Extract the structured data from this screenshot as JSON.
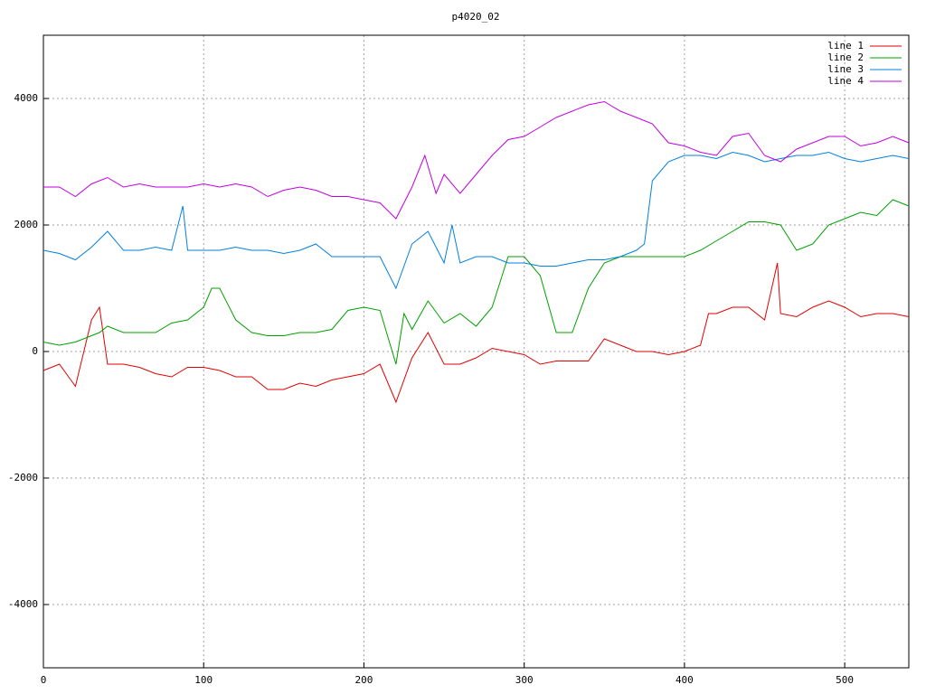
{
  "chart_data": {
    "type": "line",
    "title": "p4020_02",
    "xlim": [
      0,
      540
    ],
    "ylim": [
      -5000,
      5000
    ],
    "xticks": [
      0,
      100,
      200,
      300,
      400,
      500
    ],
    "yticks": [
      -4000,
      -2000,
      0,
      2000,
      4000
    ],
    "grid": true,
    "legend": "top-right",
    "series": [
      {
        "name": "line 1",
        "color": "#e00000",
        "x": [
          0,
          10,
          20,
          30,
          35,
          40,
          50,
          60,
          70,
          80,
          90,
          100,
          110,
          120,
          130,
          140,
          150,
          160,
          170,
          180,
          190,
          200,
          210,
          220,
          230,
          240,
          250,
          260,
          270,
          280,
          290,
          300,
          310,
          320,
          330,
          340,
          350,
          360,
          370,
          380,
          390,
          400,
          410,
          415,
          420,
          430,
          440,
          450,
          458,
          460,
          470,
          480,
          490,
          500,
          510,
          520,
          530,
          540
        ],
        "values": [
          -300,
          -200,
          -550,
          500,
          700,
          -200,
          -200,
          -250,
          -350,
          -400,
          -250,
          -250,
          -300,
          -400,
          -400,
          -600,
          -600,
          -500,
          -550,
          -450,
          -400,
          -350,
          -200,
          -800,
          -100,
          300,
          -200,
          -200,
          -100,
          50,
          0,
          -50,
          -200,
          -150,
          -150,
          -150,
          200,
          100,
          0,
          0,
          -50,
          0,
          100,
          600,
          600,
          700,
          700,
          500,
          1400,
          600,
          550,
          700,
          800,
          700,
          550,
          600,
          600,
          550
        ]
      },
      {
        "name": "line 2",
        "color": "#00a000",
        "x": [
          0,
          10,
          20,
          30,
          35,
          40,
          50,
          60,
          70,
          80,
          90,
          100,
          105,
          110,
          120,
          130,
          140,
          150,
          160,
          170,
          180,
          190,
          200,
          210,
          220,
          225,
          230,
          240,
          250,
          260,
          270,
          280,
          290,
          300,
          310,
          320,
          330,
          340,
          350,
          360,
          370,
          380,
          390,
          400,
          410,
          420,
          430,
          440,
          450,
          460,
          470,
          480,
          490,
          500,
          510,
          520,
          530,
          540
        ],
        "values": [
          150,
          100,
          150,
          250,
          300,
          400,
          300,
          300,
          300,
          450,
          500,
          700,
          1000,
          1000,
          500,
          300,
          250,
          250,
          300,
          300,
          350,
          650,
          700,
          650,
          -200,
          600,
          350,
          800,
          450,
          600,
          400,
          700,
          1500,
          1500,
          1200,
          300,
          300,
          1000,
          1400,
          1500,
          1500,
          1500,
          1500,
          1500,
          1600,
          1750,
          1900,
          2050,
          2050,
          2000,
          1600,
          1700,
          2000,
          2100,
          2200,
          2150,
          2400,
          2300
        ]
      },
      {
        "name": "line 3",
        "color": "#0080e0",
        "x": [
          0,
          10,
          20,
          30,
          40,
          50,
          60,
          70,
          80,
          87,
          90,
          100,
          110,
          120,
          130,
          140,
          150,
          160,
          170,
          180,
          190,
          200,
          210,
          220,
          230,
          240,
          250,
          255,
          260,
          270,
          280,
          290,
          300,
          310,
          320,
          330,
          340,
          350,
          360,
          370,
          375,
          380,
          390,
          400,
          410,
          420,
          430,
          440,
          450,
          460,
          470,
          480,
          490,
          500,
          510,
          520,
          530,
          540
        ],
        "values": [
          1600,
          1550,
          1450,
          1650,
          1900,
          1600,
          1600,
          1650,
          1600,
          2300,
          1600,
          1600,
          1600,
          1650,
          1600,
          1600,
          1550,
          1600,
          1700,
          1500,
          1500,
          1500,
          1500,
          1000,
          1700,
          1900,
          1400,
          2000,
          1400,
          1500,
          1500,
          1400,
          1400,
          1350,
          1350,
          1400,
          1450,
          1450,
          1500,
          1600,
          1700,
          2700,
          3000,
          3100,
          3100,
          3050,
          3150,
          3100,
          3000,
          3050,
          3100,
          3100,
          3150,
          3050,
          3000,
          3050,
          3100,
          3050
        ]
      },
      {
        "name": "line 4",
        "color": "#c000e0",
        "x": [
          0,
          10,
          20,
          30,
          40,
          50,
          60,
          70,
          80,
          90,
          100,
          110,
          120,
          130,
          140,
          150,
          160,
          170,
          180,
          190,
          200,
          210,
          220,
          230,
          238,
          245,
          250,
          260,
          270,
          280,
          290,
          300,
          310,
          320,
          330,
          340,
          350,
          360,
          370,
          380,
          390,
          400,
          410,
          420,
          430,
          440,
          450,
          460,
          470,
          480,
          490,
          500,
          510,
          520,
          530,
          540
        ],
        "values": [
          2600,
          2600,
          2450,
          2650,
          2750,
          2600,
          2650,
          2600,
          2600,
          2600,
          2650,
          2600,
          2650,
          2600,
          2450,
          2550,
          2600,
          2550,
          2450,
          2450,
          2400,
          2350,
          2100,
          2600,
          3100,
          2500,
          2800,
          2500,
          2800,
          3100,
          3350,
          3400,
          3550,
          3700,
          3800,
          3900,
          3950,
          3800,
          3700,
          3600,
          3300,
          3250,
          3150,
          3100,
          3400,
          3450,
          3100,
          3000,
          3200,
          3300,
          3400,
          3400,
          3250,
          3300,
          3400,
          3300
        ]
      }
    ]
  }
}
